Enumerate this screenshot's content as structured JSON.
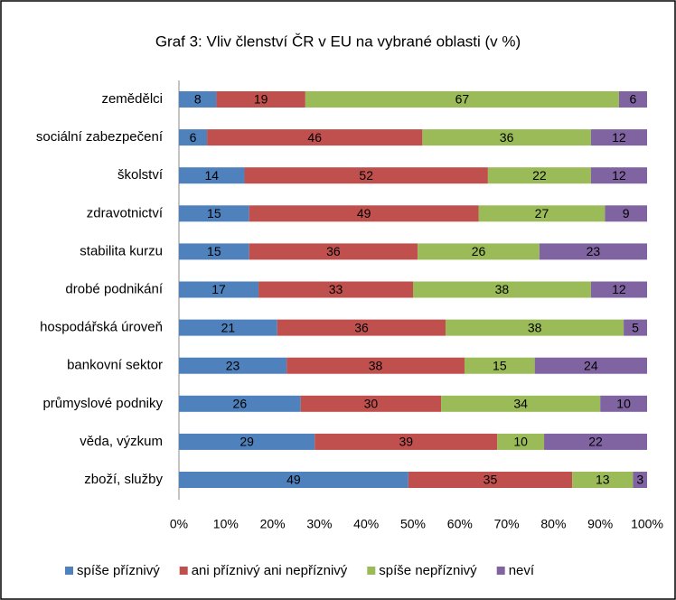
{
  "chart_data": {
    "type": "stacked-bar-horizontal",
    "title": "Graf 3: Vliv členství ČR v EU na vybrané oblasti (v %)",
    "categories": [
      "zemědělci",
      "sociální zabezpečení",
      "školství",
      "zdravotnictví",
      "stabilita kurzu",
      "drobé podnikání",
      "hospodářská úroveň",
      "bankovní sektor",
      "průmyslové podniky",
      "věda, výzkum",
      "zboží, služby"
    ],
    "series": [
      {
        "name": "spíše příznivý",
        "color": "#4f81bd",
        "values": [
          8,
          6,
          14,
          15,
          15,
          17,
          21,
          23,
          26,
          29,
          49
        ]
      },
      {
        "name": "ani příznivý ani nepříznivý",
        "color": "#c0504d",
        "values": [
          19,
          46,
          52,
          49,
          36,
          33,
          36,
          38,
          30,
          39,
          35
        ]
      },
      {
        "name": "spíše nepříznivý",
        "color": "#9bbb59",
        "values": [
          67,
          36,
          22,
          27,
          26,
          38,
          38,
          15,
          34,
          10,
          13
        ]
      },
      {
        "name": "neví",
        "color": "#8064a2",
        "values": [
          6,
          12,
          12,
          9,
          23,
          12,
          5,
          24,
          10,
          22,
          3
        ]
      }
    ],
    "xlim": [
      0,
      100
    ],
    "xticks": [
      {
        "value": 0,
        "label": "0%"
      },
      {
        "value": 10,
        "label": "10%"
      },
      {
        "value": 20,
        "label": "20%"
      },
      {
        "value": 30,
        "label": "30%"
      },
      {
        "value": 40,
        "label": "40%"
      },
      {
        "value": 50,
        "label": "50%"
      },
      {
        "value": 60,
        "label": "60%"
      },
      {
        "value": 70,
        "label": "70%"
      },
      {
        "value": 80,
        "label": "80%"
      },
      {
        "value": 90,
        "label": "90%"
      },
      {
        "value": 100,
        "label": "100%"
      }
    ],
    "legend": "bottom"
  }
}
